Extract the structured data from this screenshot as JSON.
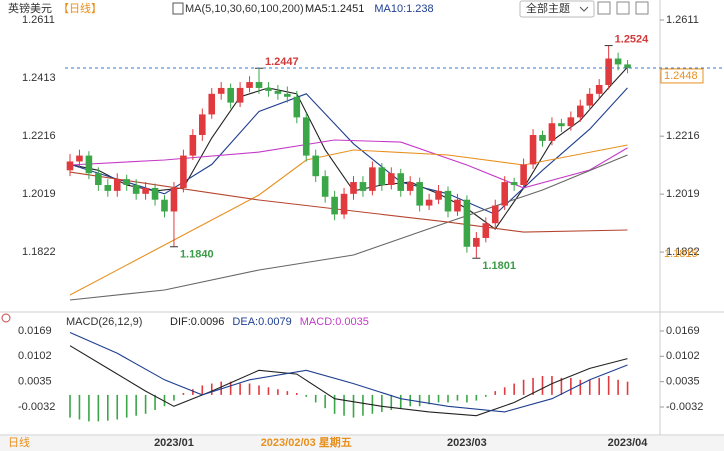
{
  "chart_data": {
    "type": "candlestick",
    "symbol": "英镑美元",
    "period": "【日线】",
    "indicator": "MA(5,10,30,60,100,200)",
    "ma_labels": [
      {
        "text": "MA5:1.2451",
        "color": "#222222"
      },
      {
        "text": "MA10:1.238",
        "color": "#1f3f8f"
      }
    ],
    "theme_button": "全部主题",
    "ylim": [
      1.1625,
      1.2645
    ],
    "yticks": [
      1.2611,
      1.2413,
      1.2216,
      1.2019,
      1.1822
    ],
    "up_color": "#e0393e",
    "down_color": "#3aa648",
    "candles": [
      [
        1.21,
        1.2155,
        1.208,
        1.213
      ],
      [
        1.213,
        1.217,
        1.211,
        1.215
      ],
      [
        1.215,
        1.2165,
        1.207,
        1.209
      ],
      [
        1.209,
        1.211,
        1.203,
        1.205
      ],
      [
        1.205,
        1.207,
        1.201,
        1.203
      ],
      [
        1.203,
        1.209,
        1.201,
        1.207
      ],
      [
        1.207,
        1.2085,
        1.203,
        1.205
      ],
      [
        1.205,
        1.207,
        1.2,
        1.202
      ],
      [
        1.202,
        1.206,
        1.2,
        1.204
      ],
      [
        1.204,
        1.2055,
        1.198,
        1.2
      ],
      [
        1.2,
        1.2015,
        1.194,
        1.196
      ],
      [
        1.196,
        1.206,
        1.184,
        1.204
      ],
      [
        1.204,
        1.217,
        1.2025,
        1.215
      ],
      [
        1.215,
        1.224,
        1.2135,
        1.222
      ],
      [
        1.222,
        1.231,
        1.22,
        1.229
      ],
      [
        1.229,
        1.238,
        1.2275,
        1.236
      ],
      [
        1.236,
        1.24,
        1.234,
        1.238
      ],
      [
        1.238,
        1.2395,
        1.231,
        1.233
      ],
      [
        1.233,
        1.24,
        1.2315,
        1.238
      ],
      [
        1.238,
        1.242,
        1.2365,
        1.24
      ],
      [
        1.24,
        1.2447,
        1.236,
        1.238
      ],
      [
        1.238,
        1.24,
        1.235,
        1.237
      ],
      [
        1.237,
        1.239,
        1.234,
        1.236
      ],
      [
        1.236,
        1.2385,
        1.233,
        1.235
      ],
      [
        1.235,
        1.237,
        1.226,
        1.228
      ],
      [
        1.228,
        1.2295,
        1.213,
        1.215
      ],
      [
        1.215,
        1.217,
        1.206,
        1.208
      ],
      [
        1.208,
        1.21,
        1.199,
        1.201
      ],
      [
        1.201,
        1.203,
        1.193,
        1.195
      ],
      [
        1.195,
        1.204,
        1.1935,
        1.202
      ],
      [
        1.202,
        1.208,
        1.2,
        1.206
      ],
      [
        1.206,
        1.208,
        1.201,
        1.203
      ],
      [
        1.203,
        1.213,
        1.2015,
        1.211
      ],
      [
        1.211,
        1.2125,
        1.203,
        1.205
      ],
      [
        1.205,
        1.211,
        1.2035,
        1.209
      ],
      [
        1.209,
        1.2105,
        1.201,
        1.203
      ],
      [
        1.203,
        1.208,
        1.2015,
        1.206
      ],
      [
        1.206,
        1.2075,
        1.196,
        1.198
      ],
      [
        1.198,
        1.202,
        1.1965,
        1.2
      ],
      [
        1.2,
        1.205,
        1.1985,
        1.203
      ],
      [
        1.203,
        1.2045,
        1.194,
        1.196
      ],
      [
        1.196,
        1.202,
        1.1945,
        1.2
      ],
      [
        1.2,
        1.2015,
        1.182,
        1.184
      ],
      [
        1.184,
        1.189,
        1.1801,
        1.187
      ],
      [
        1.187,
        1.194,
        1.1855,
        1.192
      ],
      [
        1.192,
        1.2,
        1.1905,
        1.198
      ],
      [
        1.198,
        1.208,
        1.1965,
        1.206
      ],
      [
        1.206,
        1.2075,
        1.203,
        1.205
      ],
      [
        1.205,
        1.214,
        1.2035,
        1.212
      ],
      [
        1.212,
        1.224,
        1.2105,
        1.222
      ],
      [
        1.222,
        1.2235,
        1.218,
        1.22
      ],
      [
        1.22,
        1.228,
        1.2185,
        1.226
      ],
      [
        1.226,
        1.2275,
        1.223,
        1.225
      ],
      [
        1.225,
        1.23,
        1.2235,
        1.228
      ],
      [
        1.228,
        1.234,
        1.2265,
        1.232
      ],
      [
        1.232,
        1.238,
        1.2305,
        1.236
      ],
      [
        1.236,
        1.241,
        1.2345,
        1.239
      ],
      [
        1.239,
        1.2524,
        1.2375,
        1.248
      ],
      [
        1.248,
        1.25,
        1.244,
        1.246
      ],
      [
        1.246,
        1.2475,
        1.243,
        1.2448
      ]
    ],
    "ma_series": [
      {
        "color": "#222222",
        "x": [
          0,
          3,
          6,
          9,
          12,
          15,
          18,
          21,
          24,
          27,
          30,
          33,
          36,
          39,
          42,
          45,
          48,
          51,
          54,
          57,
          59
        ],
        "values": [
          1.212,
          1.21,
          1.205,
          1.203,
          1.204,
          1.221,
          1.235,
          1.238,
          1.236,
          1.217,
          1.203,
          1.205,
          1.206,
          1.202,
          1.197,
          1.19,
          1.204,
          1.22,
          1.227,
          1.238,
          1.2451
        ]
      },
      {
        "color": "#1f3f8f",
        "x": [
          0,
          5,
          10,
          15,
          20,
          25,
          30,
          35,
          40,
          45,
          50,
          55,
          59
        ],
        "values": [
          1.212,
          1.207,
          1.202,
          1.212,
          1.23,
          1.236,
          1.219,
          1.206,
          1.202,
          1.195,
          1.21,
          1.224,
          1.238
        ]
      },
      {
        "color": "#c43ac8",
        "x": [
          0,
          10,
          20,
          28,
          35,
          42,
          48,
          55,
          59
        ],
        "values": [
          1.2118,
          1.2135,
          1.2162,
          1.2203,
          1.2196,
          1.2118,
          1.204,
          1.2101,
          1.2176
        ]
      },
      {
        "color": "#e8901e",
        "x": [
          0,
          10,
          20,
          25,
          30,
          40,
          48,
          59
        ],
        "values": [
          1.1676,
          1.1846,
          1.2016,
          1.2135,
          1.2169,
          1.2152,
          1.2118,
          1.2186
        ]
      },
      {
        "color": "#666666",
        "x": [
          0,
          10,
          20,
          30,
          40,
          50,
          59
        ],
        "values": [
          1.1659,
          1.1693,
          1.1761,
          1.1812,
          1.1924,
          1.2033,
          1.2152
        ]
      },
      {
        "color": "#b5452f",
        "x": [
          0,
          20,
          40,
          48,
          59
        ],
        "values": [
          1.2094,
          1.1999,
          1.1924,
          1.189,
          1.1897
        ]
      }
    ],
    "extremes": [
      {
        "index": 20,
        "value": 1.2447,
        "color": "#d23a3a"
      },
      {
        "index": 11,
        "value": 1.184,
        "label": "1.1840",
        "color": "#3a9a48"
      },
      {
        "index": 43,
        "value": 1.1801,
        "color": "#3a9a48"
      },
      {
        "index": 57,
        "value": 1.2524,
        "color": "#d23a3a"
      }
    ],
    "current_price": 1.2448,
    "side_price": 1.1815,
    "macd": {
      "title": "MACD(26,12,9)",
      "labels": [
        {
          "text": "DIF:0.0096",
          "color": "#222222"
        },
        {
          "text": "DEA:0.0079",
          "color": "#1f3f8f"
        },
        {
          "text": "MACD:0.0035",
          "color": "#c43ac8"
        }
      ],
      "ylim": [
        -0.0106,
        0.0198
      ],
      "yticks": [
        0.0169,
        0.0102,
        0.0035,
        -0.0032
      ],
      "hist": [
        -0.006,
        -0.0065,
        -0.007,
        -0.007,
        -0.0068,
        -0.0065,
        -0.006,
        -0.0055,
        -0.005,
        -0.004,
        -0.003,
        -0.0015,
        0.0005,
        0.0015,
        0.0025,
        0.003,
        0.0035,
        0.0035,
        0.003,
        0.003,
        0.0025,
        0.002,
        0.0015,
        0.001,
        0.0005,
        -0.0005,
        -0.002,
        -0.0035,
        -0.005,
        -0.0055,
        -0.006,
        -0.0055,
        -0.005,
        -0.0045,
        -0.004,
        -0.0035,
        -0.003,
        -0.003,
        -0.0025,
        -0.002,
        -0.002,
        -0.0015,
        -0.002,
        -0.0015,
        -0.0005,
        0.001,
        0.002,
        0.003,
        0.004,
        0.0045,
        0.005,
        0.005,
        0.0045,
        0.0045,
        0.004,
        0.004,
        0.0045,
        0.005,
        0.004,
        0.0035
      ],
      "lines": [
        {
          "color": "#222222",
          "x": [
            0,
            4,
            8,
            11,
            15,
            20,
            24,
            28,
            33,
            38,
            43,
            47,
            51,
            55,
            59
          ],
          "values": [
            0.013,
            0.007,
            0.001,
            -0.003,
            0.001,
            0.0065,
            0.0055,
            -0.001,
            -0.003,
            -0.0045,
            -0.0055,
            -0.002,
            0.003,
            0.007,
            0.0096
          ]
        },
        {
          "color": "#1f3f8f",
          "x": [
            0,
            5,
            10,
            14,
            19,
            25,
            30,
            35,
            40,
            46,
            51,
            55,
            59
          ],
          "values": [
            0.0165,
            0.011,
            0.004,
            0.0,
            0.004,
            0.0065,
            0.003,
            -0.001,
            -0.003,
            -0.0045,
            -0.001,
            0.004,
            0.0079
          ]
        }
      ]
    },
    "period_tab": "日线",
    "dates": [
      {
        "index": 11,
        "label": "2023/01"
      },
      {
        "index": 25,
        "label": "2023/02/03 星期五"
      },
      {
        "index": 42,
        "label": "2023/03"
      },
      {
        "index": 59,
        "label": "2023/04"
      }
    ]
  }
}
